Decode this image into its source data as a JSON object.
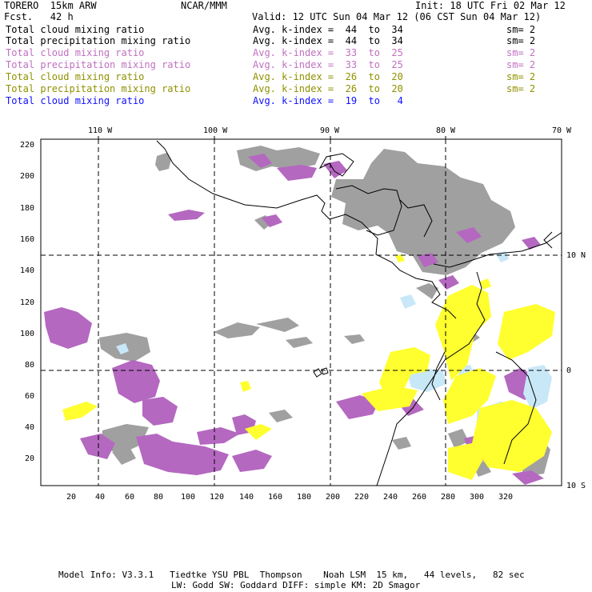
{
  "header": {
    "model": "TORERO  15km ARW",
    "org": "NCAR/MMM",
    "init": "Init: 18 UTC Fri 02 Mar 12",
    "fcst": "Fcst.   42 h",
    "valid": "Valid: 12 UTC Sun 04 Mar 12 (06 CST Sun 04 Mar 12)"
  },
  "fields": [
    {
      "name": "Total cloud mixing ratio",
      "kindex": "Avg. k-index =  44  to  34",
      "sm": "sm= 2",
      "color": "#000000"
    },
    {
      "name": "Total precipitation mixing ratio",
      "kindex": "Avg. k-index =  44  to  34",
      "sm": "sm= 2",
      "color": "#000000"
    },
    {
      "name": "Total cloud mixing ratio",
      "kindex": "Avg. k-index =  33  to  25",
      "sm": "sm= 2",
      "color": "#c070c0"
    },
    {
      "name": "Total precipitation mixing ratio",
      "kindex": "Avg. k-index =  33  to  25",
      "sm": "sm= 2",
      "color": "#c070c0"
    },
    {
      "name": "Total cloud mixing ratio",
      "kindex": "Avg. k-index =  26  to  20",
      "sm": "sm= 2",
      "color": "#909000"
    },
    {
      "name": "Total precipitation mixing ratio",
      "kindex": "Avg. k-index =  26  to  20",
      "sm": "sm= 2",
      "color": "#909000"
    },
    {
      "name": "Total cloud mixing ratio",
      "kindex": "Avg. k-index =  19  to   4",
      "sm": "",
      "color": "#1010ff"
    }
  ],
  "map": {
    "lon_labels": [
      "110 W",
      "100 W",
      "90 W",
      "80 W",
      "70 W"
    ],
    "lat_labels": [
      "10 N",
      "0",
      "10 S"
    ],
    "x_ticks": [
      "20",
      "40",
      "60",
      "80",
      "100",
      "120",
      "140",
      "160",
      "180",
      "200",
      "220",
      "240",
      "260",
      "280",
      "300",
      "320"
    ],
    "y_ticks": [
      "220",
      "200",
      "180",
      "160",
      "140",
      "120",
      "100",
      "80",
      "60",
      "40",
      "20"
    ],
    "colors": {
      "gray": "#a0a0a0",
      "purple": "#b468c0",
      "yellow": "#ffff30",
      "lightblue": "#c8e8f8"
    }
  },
  "footer": {
    "line1": "Model Info: V3.3.1   Tiedtke YSU PBL  Thompson    Noah LSM  15 km,   44 levels,   82 sec",
    "line2": "LW: Godd SW: Goddard DIFF: simple KM: 2D Smagor"
  }
}
